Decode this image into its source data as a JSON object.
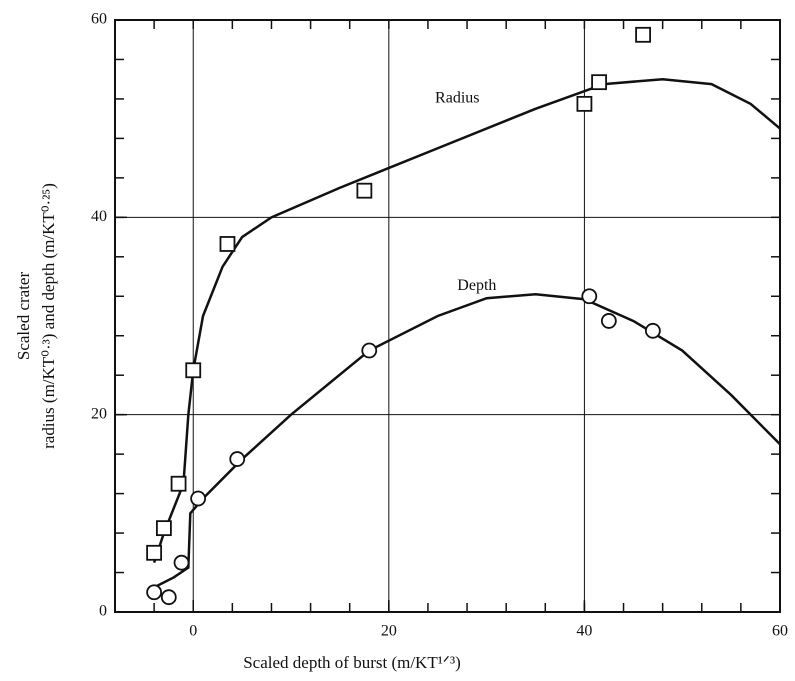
{
  "chart_data": {
    "type": "scatter",
    "xlabel": "Scaled depth of burst (m/KT¹ᐟ³)",
    "ylabel": [
      "Scaled crater",
      "radius (m/KT⁰·³) and depth (m/KT⁰·²⁵)"
    ],
    "xlim": [
      -8,
      60
    ],
    "ylim": [
      0,
      60
    ],
    "xticks": [
      0,
      20,
      40,
      60
    ],
    "yticks": [
      0,
      20,
      40,
      60
    ],
    "xgrid": [
      0,
      20,
      40
    ],
    "ygrid": [
      20,
      40
    ],
    "color": "#111111",
    "series": [
      {
        "name": "Radius",
        "marker": "square",
        "x": [
          -4,
          -3,
          -1.5,
          0,
          3.5,
          17.5,
          40,
          41.5,
          46
        ],
        "values": [
          6,
          8.5,
          13,
          24.5,
          37.3,
          42.7,
          51.5,
          53.7,
          58.5
        ],
        "curve_x": [
          -4,
          -3,
          -1,
          -0.5,
          0,
          1,
          3,
          5,
          8,
          15,
          25,
          35,
          42,
          48,
          53,
          57,
          60
        ],
        "curve_values": [
          5,
          8,
          13,
          20,
          24.5,
          30,
          35,
          38,
          40,
          43,
          47,
          51,
          53.5,
          54,
          53.5,
          51.5,
          49
        ]
      },
      {
        "name": "Depth",
        "marker": "circle",
        "x": [
          -4,
          -2.5,
          -1.2,
          0.5,
          4.5,
          18,
          40.5,
          42.5,
          47
        ],
        "values": [
          2,
          1.5,
          5,
          11.5,
          15.5,
          26.5,
          32,
          29.5,
          28.5
        ],
        "curve_x": [
          -4,
          -2,
          -0.5,
          -0.3,
          1,
          5,
          10,
          18,
          25,
          30,
          35,
          40,
          45,
          50,
          55,
          60
        ],
        "curve_values": [
          2.5,
          3.5,
          4.5,
          10,
          11.5,
          15.5,
          20,
          26.5,
          30,
          31.8,
          32.2,
          31.7,
          29.5,
          26.5,
          22,
          17
        ]
      }
    ]
  }
}
